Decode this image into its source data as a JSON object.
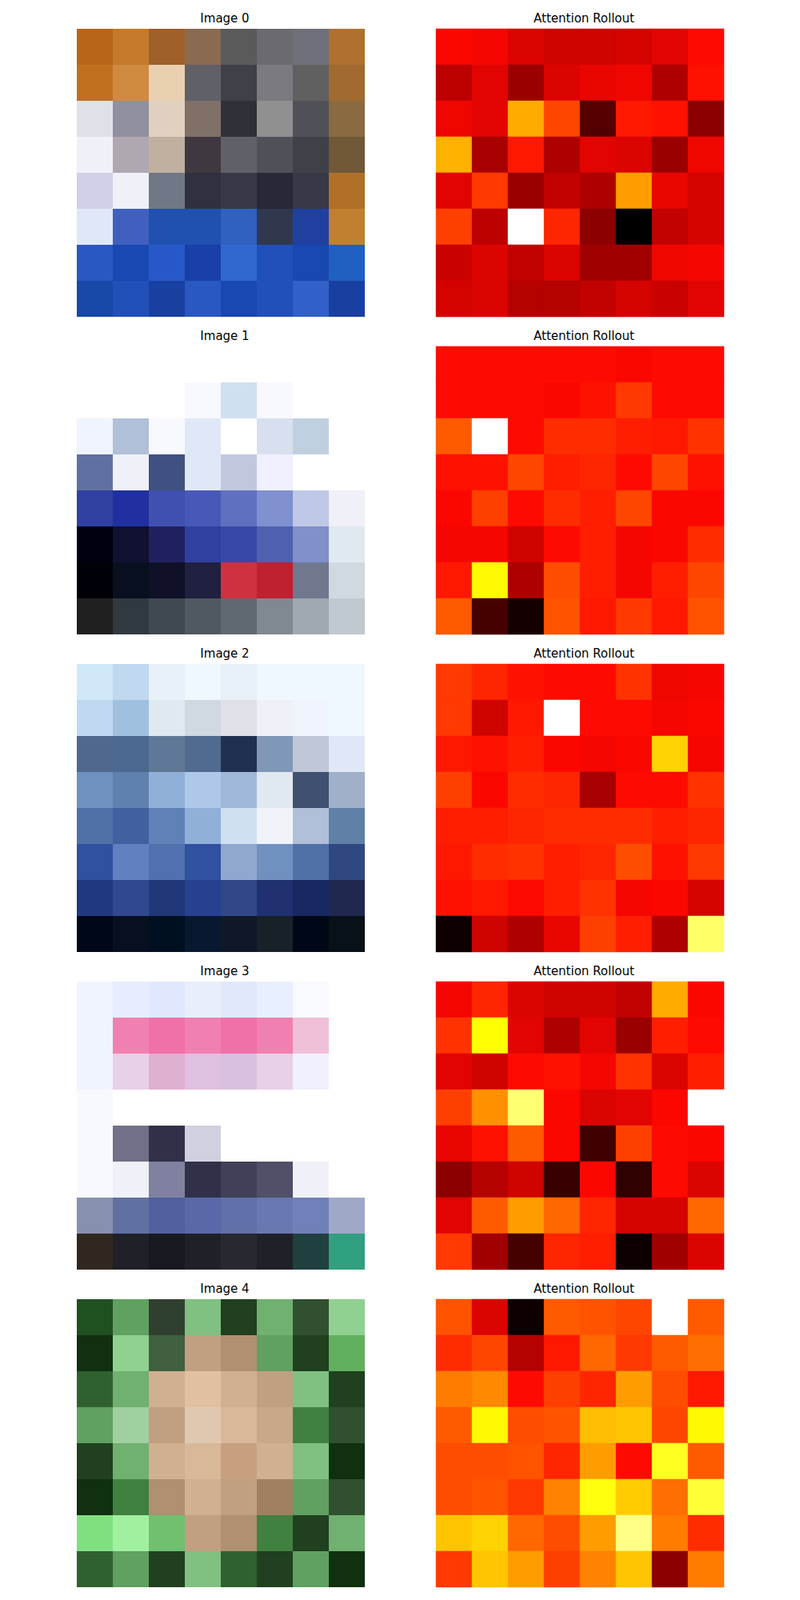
{
  "chart_data": [
    {
      "type": "image",
      "title": "Image 0",
      "tick_labels": false,
      "pixels": [
        [
          "#b8651a",
          "#c47a2a",
          "#a0602a",
          "#8a6a50",
          "#5a5a5a",
          "#6a6a70",
          "#70707a",
          "#b07030"
        ],
        [
          "#c07020",
          "#d08a40",
          "#e8d0b0",
          "#606068",
          "#404048",
          "#7a7a80",
          "#606060",
          "#a06a30"
        ],
        [
          "#e0e0e8",
          "#9090a0",
          "#e0d0c0",
          "#807068",
          "#303038",
          "#909090",
          "#505058",
          "#8a6a40"
        ],
        [
          "#f0f0f8",
          "#b0a8b0",
          "#c0b0a0",
          "#403840",
          "#606068",
          "#505058",
          "#404048",
          "#705838"
        ],
        [
          "#d0d0e8",
          "#f0f0f8",
          "#707888",
          "#303040",
          "#383848",
          "#282838",
          "#383848",
          "#b07028"
        ],
        [
          "#e0e8f8",
          "#4060c0",
          "#2050b0",
          "#2050b0",
          "#3060c0",
          "#303850",
          "#2040a0",
          "#c08030"
        ],
        [
          "#2858c0",
          "#1848b0",
          "#2858c8",
          "#1840a8",
          "#3068d0",
          "#2050b8",
          "#1848b0",
          "#2060c0"
        ],
        [
          "#1848a8",
          "#2050b8",
          "#1840a0",
          "#2858c0",
          "#1848b0",
          "#2050b8",
          "#3060c8",
          "#1840a0"
        ]
      ]
    },
    {
      "type": "heatmap",
      "title": "Attention Rollout",
      "color": "hot",
      "tick_labels": false,
      "color_range": [
        0,
        1
      ],
      "values": [
        [
          0.37,
          0.36,
          0.32,
          0.3,
          0.3,
          0.31,
          0.33,
          0.38
        ],
        [
          0.27,
          0.33,
          0.22,
          0.32,
          0.34,
          0.35,
          0.25,
          0.39
        ],
        [
          0.35,
          0.33,
          0.62,
          0.47,
          0.12,
          0.4,
          0.39,
          0.2
        ],
        [
          0.63,
          0.24,
          0.4,
          0.25,
          0.33,
          0.32,
          0.22,
          0.35
        ],
        [
          0.33,
          0.45,
          0.22,
          0.28,
          0.25,
          0.6,
          0.34,
          0.31
        ],
        [
          0.46,
          0.27,
          1.0,
          0.42,
          0.2,
          0.0,
          0.28,
          0.31
        ],
        [
          0.29,
          0.32,
          0.28,
          0.32,
          0.23,
          0.23,
          0.35,
          0.36
        ],
        [
          0.31,
          0.32,
          0.26,
          0.26,
          0.28,
          0.31,
          0.29,
          0.33
        ]
      ]
    },
    {
      "type": "image",
      "title": "Image 1",
      "tick_labels": false,
      "pixels": [
        [
          "#ffffff",
          "#ffffff",
          "#ffffff",
          "#ffffff",
          "#ffffff",
          "#ffffff",
          "#ffffff",
          "#ffffff"
        ],
        [
          "#ffffff",
          "#ffffff",
          "#ffffff",
          "#f8f8ff",
          "#d0e0f0",
          "#f8f8ff",
          "#ffffff",
          "#ffffff"
        ],
        [
          "#f0f4ff",
          "#b0c0d8",
          "#f8f8ff",
          "#e0e8f8",
          "#ffffff",
          "#d8e0f0",
          "#c0d0e0",
          "#ffffff"
        ],
        [
          "#6070a0",
          "#f0f0f8",
          "#405080",
          "#e0e8f8",
          "#c0c8e0",
          "#f0f0ff",
          "#ffffff",
          "#ffffff"
        ],
        [
          "#3040a0",
          "#2030a0",
          "#4050b0",
          "#4858b8",
          "#6070c0",
          "#8090d0",
          "#c0c8e8",
          "#f0f0f8"
        ],
        [
          "#000010",
          "#101030",
          "#202060",
          "#3040a0",
          "#3848a8",
          "#5060b0",
          "#8090c8",
          "#e0e8f0"
        ],
        [
          "#000008",
          "#081020",
          "#101028",
          "#202040",
          "#d03040",
          "#c02030",
          "#707890",
          "#d0d8e0"
        ],
        [
          "#202020",
          "#303840",
          "#404850",
          "#505860",
          "#606870",
          "#808890",
          "#a0a8b0",
          "#c0c8d0"
        ]
      ]
    },
    {
      "type": "heatmap",
      "title": "Attention Rollout",
      "color": "hot",
      "tick_labels": false,
      "color_range": [
        0,
        1
      ],
      "values": [
        [
          0.38,
          0.38,
          0.38,
          0.38,
          0.38,
          0.37,
          0.38,
          0.38
        ],
        [
          0.38,
          0.38,
          0.38,
          0.37,
          0.39,
          0.45,
          0.38,
          0.38
        ],
        [
          0.5,
          1.0,
          0.38,
          0.43,
          0.43,
          0.41,
          0.4,
          0.44
        ],
        [
          0.39,
          0.39,
          0.47,
          0.41,
          0.42,
          0.38,
          0.47,
          0.39
        ],
        [
          0.37,
          0.46,
          0.38,
          0.43,
          0.41,
          0.47,
          0.37,
          0.37
        ],
        [
          0.36,
          0.36,
          0.3,
          0.38,
          0.41,
          0.36,
          0.37,
          0.43
        ],
        [
          0.4,
          0.74,
          0.25,
          0.48,
          0.41,
          0.36,
          0.41,
          0.47
        ],
        [
          0.5,
          0.1,
          0.03,
          0.49,
          0.4,
          0.45,
          0.4,
          0.49
        ]
      ]
    },
    {
      "type": "image",
      "title": "Image 2",
      "tick_labels": false,
      "pixels": [
        [
          "#d0e8f8",
          "#c0d8f0",
          "#e8f0f8",
          "#f0f8ff",
          "#e8f0f8",
          "#f0f8ff",
          "#f0f8ff",
          "#f0f8ff"
        ],
        [
          "#c0d8f0",
          "#a0c0e0",
          "#e0e8f0",
          "#d0d8e0",
          "#e0e0e8",
          "#f0f0f8",
          "#f0f4fc",
          "#f0f8ff"
        ],
        [
          "#506890",
          "#4a6890",
          "#607898",
          "#506a90",
          "#203050",
          "#8098b8",
          "#c0c8d8",
          "#e0e8f8"
        ],
        [
          "#7090c0",
          "#6080b0",
          "#90b0d8",
          "#b0c8e8",
          "#a0b8d8",
          "#e0e8f0",
          "#405070",
          "#a0b0c8"
        ],
        [
          "#5070a8",
          "#4060a0",
          "#6080b8",
          "#90b0d8",
          "#d0e0f0",
          "#f0f4f8",
          "#b0c0d8",
          "#6080a8"
        ],
        [
          "#3050a0",
          "#6080c0",
          "#5070b0",
          "#3050a0",
          "#90a8d0",
          "#7090c0",
          "#5070a8",
          "#304880"
        ],
        [
          "#203880",
          "#304890",
          "#203878",
          "#284090",
          "#304888",
          "#203070",
          "#182860",
          "#202850"
        ],
        [
          "#000818",
          "#081020",
          "#001020",
          "#081830",
          "#101828",
          "#182028",
          "#000818",
          "#081018"
        ]
      ]
    },
    {
      "type": "heatmap",
      "title": "Attention Rollout",
      "color": "hot",
      "tick_labels": false,
      "color_range": [
        0,
        1
      ],
      "values": [
        [
          0.45,
          0.42,
          0.39,
          0.38,
          0.38,
          0.44,
          0.35,
          0.36
        ],
        [
          0.45,
          0.3,
          0.4,
          1.0,
          0.38,
          0.38,
          0.36,
          0.37
        ],
        [
          0.4,
          0.39,
          0.41,
          0.37,
          0.36,
          0.37,
          0.68,
          0.36
        ],
        [
          0.46,
          0.37,
          0.43,
          0.42,
          0.24,
          0.38,
          0.38,
          0.44
        ],
        [
          0.41,
          0.41,
          0.42,
          0.43,
          0.43,
          0.43,
          0.41,
          0.42
        ],
        [
          0.4,
          0.43,
          0.44,
          0.41,
          0.42,
          0.48,
          0.39,
          0.45
        ],
        [
          0.39,
          0.4,
          0.38,
          0.41,
          0.44,
          0.36,
          0.37,
          0.31
        ],
        [
          0.02,
          0.3,
          0.25,
          0.34,
          0.46,
          0.41,
          0.25,
          0.85
        ]
      ]
    },
    {
      "type": "image",
      "title": "Image 3",
      "tick_labels": false,
      "pixels": [
        [
          "#f0f4ff",
          "#e8ecff",
          "#e0e8ff",
          "#e8eefc",
          "#e0e8fc",
          "#e8f0ff",
          "#f8faff",
          "#ffffff"
        ],
        [
          "#f0f4ff",
          "#f080b0",
          "#f070a8",
          "#f080b0",
          "#f070a8",
          "#f080b0",
          "#f0c0d8",
          "#ffffff"
        ],
        [
          "#f0f4ff",
          "#e8d0e8",
          "#e0b0d0",
          "#e0c0e0",
          "#d8c0e0",
          "#e8d0e8",
          "#f0f0ff",
          "#ffffff"
        ],
        [
          "#f8f8ff",
          "#ffffff",
          "#ffffff",
          "#ffffff",
          "#ffffff",
          "#ffffff",
          "#ffffff",
          "#ffffff"
        ],
        [
          "#f8f8ff",
          "#707088",
          "#303048",
          "#d0d0e0",
          "#ffffff",
          "#ffffff",
          "#ffffff",
          "#ffffff"
        ],
        [
          "#f8f8ff",
          "#f0f0f8",
          "#8080a0",
          "#303048",
          "#404058",
          "#505068",
          "#f0f0f8",
          "#ffffff"
        ],
        [
          "#8890b0",
          "#6070a0",
          "#5060a0",
          "#5868a8",
          "#6070a8",
          "#6878b0",
          "#7080b8",
          "#a0a8c8"
        ],
        [
          "#302820",
          "#202028",
          "#181820",
          "#202028",
          "#282830",
          "#202028",
          "#204040",
          "#30a080"
        ]
      ]
    },
    {
      "type": "heatmap",
      "title": "Attention Rollout",
      "color": "hot",
      "tick_labels": false,
      "color_range": [
        0,
        1
      ],
      "values": [
        [
          0.36,
          0.42,
          0.32,
          0.3,
          0.3,
          0.28,
          0.62,
          0.37
        ],
        [
          0.44,
          0.75,
          0.33,
          0.25,
          0.33,
          0.22,
          0.41,
          0.38
        ],
        [
          0.33,
          0.3,
          0.38,
          0.39,
          0.36,
          0.44,
          0.32,
          0.41
        ],
        [
          0.46,
          0.58,
          0.86,
          0.37,
          0.32,
          0.33,
          0.37,
          1.0
        ],
        [
          0.34,
          0.39,
          0.5,
          0.37,
          0.09,
          0.46,
          0.38,
          0.37
        ],
        [
          0.2,
          0.26,
          0.3,
          0.08,
          0.37,
          0.07,
          0.38,
          0.32
        ],
        [
          0.33,
          0.5,
          0.6,
          0.52,
          0.42,
          0.31,
          0.31,
          0.52
        ],
        [
          0.45,
          0.23,
          0.1,
          0.42,
          0.41,
          0.02,
          0.23,
          0.32
        ]
      ]
    },
    {
      "type": "image",
      "title": "Image 4",
      "tick_labels": false,
      "pixels": [
        [
          "#205020",
          "#60a060",
          "#304030",
          "#80c080",
          "#204020",
          "#70b070",
          "#305030",
          "#90d090"
        ],
        [
          "#103010",
          "#90d090",
          "#406040",
          "#c0a080",
          "#b09070",
          "#60a060",
          "#204020",
          "#60b060"
        ],
        [
          "#306030",
          "#70b070",
          "#d0b090",
          "#e0c0a0",
          "#d0b090",
          "#c0a080",
          "#80c080",
          "#204020"
        ],
        [
          "#60a060",
          "#a0d0a0",
          "#c0a080",
          "#e0c8b0",
          "#d8b898",
          "#c8a888",
          "#408040",
          "#305030"
        ],
        [
          "#204020",
          "#70b070",
          "#d0b090",
          "#d8b898",
          "#c8a080",
          "#d0b090",
          "#80c080",
          "#103010"
        ],
        [
          "#103010",
          "#408040",
          "#b09070",
          "#d0b090",
          "#c0a080",
          "#a08060",
          "#60a060",
          "#305030"
        ],
        [
          "#80e080",
          "#a0f0a0",
          "#70c070",
          "#c0a080",
          "#b09070",
          "#408040",
          "#204020",
          "#70b070"
        ],
        [
          "#306030",
          "#60a060",
          "#204020",
          "#80c080",
          "#306030",
          "#204020",
          "#60a060",
          "#103010"
        ]
      ]
    },
    {
      "type": "heatmap",
      "title": "Attention Rollout",
      "color": "hot",
      "tick_labels": false,
      "color_range": [
        0,
        1
      ],
      "values": [
        [
          0.49,
          0.32,
          0.02,
          0.5,
          0.49,
          0.47,
          1.0,
          0.5
        ],
        [
          0.43,
          0.47,
          0.26,
          0.4,
          0.52,
          0.45,
          0.5,
          0.53
        ],
        [
          0.55,
          0.57,
          0.38,
          0.46,
          0.42,
          0.6,
          0.48,
          0.4
        ],
        [
          0.5,
          0.74,
          0.48,
          0.49,
          0.65,
          0.66,
          0.47,
          0.74
        ],
        [
          0.48,
          0.48,
          0.49,
          0.42,
          0.6,
          0.38,
          0.78,
          0.5
        ],
        [
          0.48,
          0.49,
          0.45,
          0.56,
          0.76,
          0.67,
          0.53,
          0.8
        ],
        [
          0.66,
          0.68,
          0.52,
          0.48,
          0.6,
          0.88,
          0.55,
          0.43
        ],
        [
          0.45,
          0.66,
          0.6,
          0.46,
          0.56,
          0.66,
          0.2,
          0.55
        ]
      ]
    }
  ]
}
